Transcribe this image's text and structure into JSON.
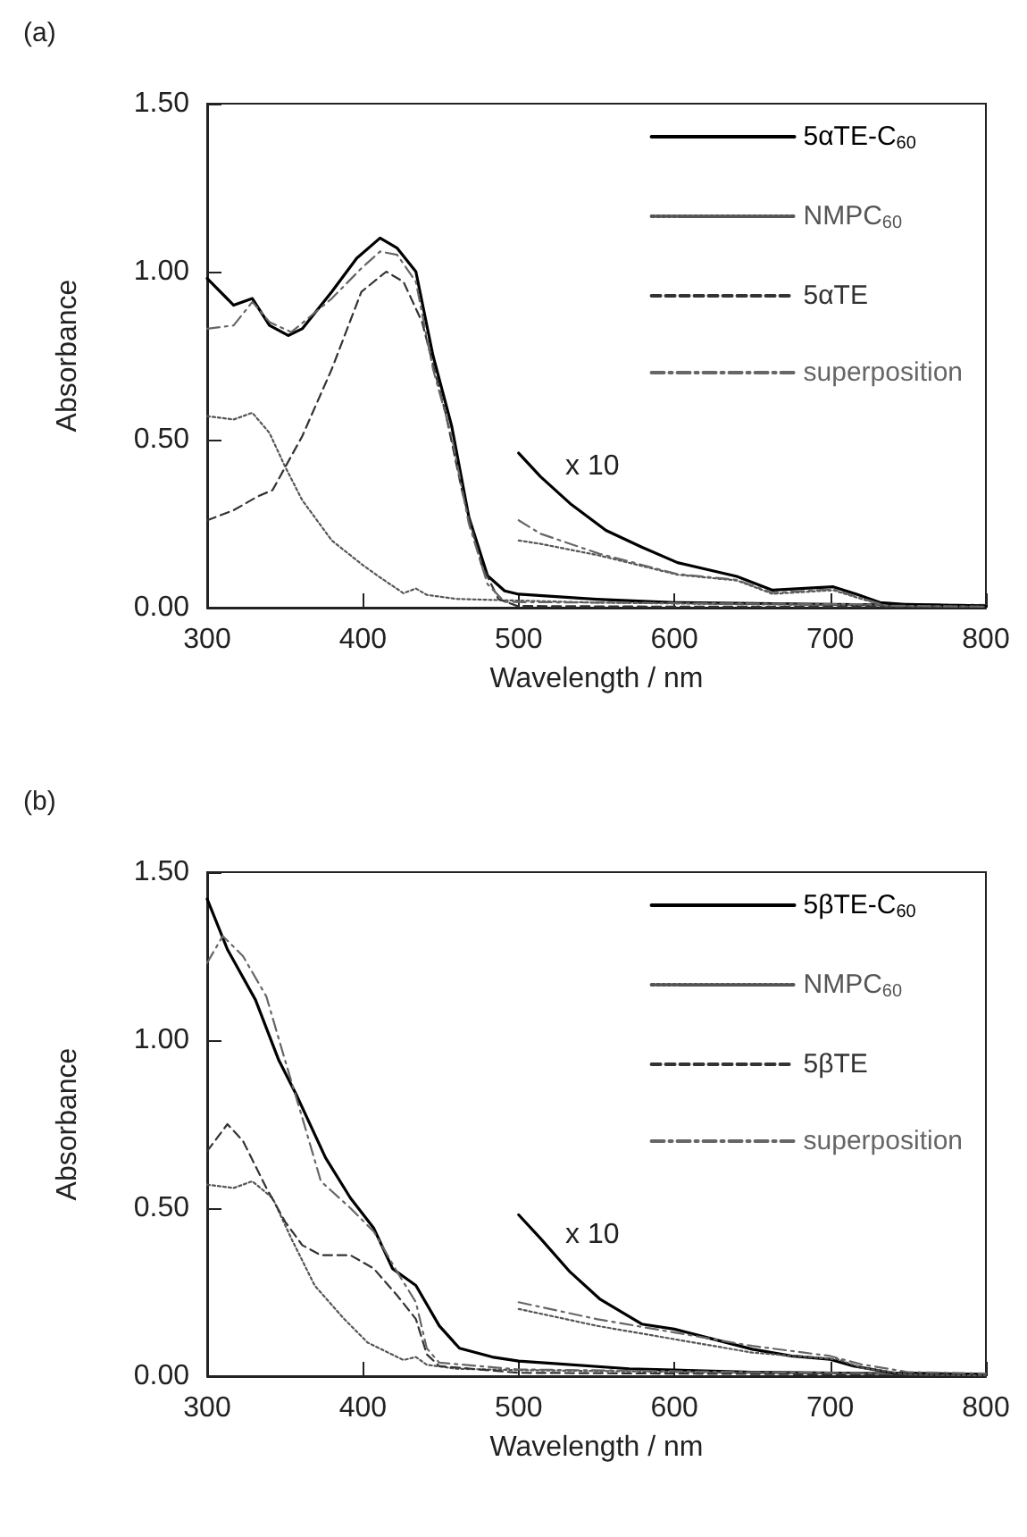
{
  "chart_data": [
    {
      "type": "line",
      "title": "(a)",
      "xlabel": "Wavelength / nm",
      "ylabel": "Absorbance",
      "xlim": [
        300,
        800
      ],
      "xticks": [
        300,
        400,
        500,
        600,
        700,
        800
      ],
      "ylim": [
        0,
        1.5
      ],
      "yticks": [
        {
          "value": 0,
          "label": "0.00"
        },
        {
          "value": 0.5,
          "label": "0.50"
        },
        {
          "value": 1,
          "label": "1.00"
        },
        {
          "value": 1.5,
          "label": "1.50"
        }
      ],
      "grid": false,
      "legend": "top right",
      "marker": "none",
      "annotations": [
        "x 10"
      ],
      "series": [
        {
          "name": "5αTE-C$_{60}$",
          "color": "#000000",
          "line_style": "solid",
          "x": [
            300,
            317,
            329,
            340,
            352,
            361,
            380,
            396,
            411,
            422,
            434,
            445,
            457,
            468,
            480,
            491,
            500,
            550,
            600,
            700,
            800
          ],
          "values": [
            0.98,
            0.9,
            0.92,
            0.84,
            0.81,
            0.83,
            0.94,
            1.04,
            1.1,
            1.07,
            1.0,
            0.75,
            0.54,
            0.27,
            0.095,
            0.05,
            0.04,
            0.025,
            0.015,
            0.01,
            0.005
          ]
        },
        {
          "name": "NMPC$_{60}$",
          "color": "#555555",
          "line_style": "dotted",
          "x": [
            300,
            317,
            329,
            340,
            350,
            361,
            380,
            399,
            411,
            426,
            434,
            441,
            460,
            491,
            550,
            650,
            800
          ],
          "values": [
            0.57,
            0.56,
            0.58,
            0.52,
            0.42,
            0.32,
            0.2,
            0.13,
            0.09,
            0.043,
            0.057,
            0.038,
            0.026,
            0.022,
            0.015,
            0.01,
            0.005
          ]
        },
        {
          "name": "5αTE",
          "color": "#333333",
          "line_style": "dashed",
          "x": [
            300,
            317,
            332,
            342,
            361,
            380,
            399,
            415,
            426,
            438,
            453,
            464,
            476,
            487,
            499,
            600,
            800
          ],
          "values": [
            0.26,
            0.29,
            0.33,
            0.35,
            0.51,
            0.71,
            0.94,
            1.0,
            0.97,
            0.85,
            0.58,
            0.34,
            0.13,
            0.026,
            0.005,
            0.003,
            0.002
          ]
        },
        {
          "name": "superposition",
          "color": "#666666",
          "line_style": "dashdot",
          "x": [
            300,
            317,
            329,
            340,
            354,
            380,
            399,
            411,
            422,
            434,
            445,
            457,
            468,
            480,
            491,
            550,
            650,
            800
          ],
          "values": [
            0.83,
            0.84,
            0.91,
            0.85,
            0.82,
            0.92,
            1.01,
            1.06,
            1.05,
            0.97,
            0.71,
            0.51,
            0.25,
            0.07,
            0.017,
            0.015,
            0.012,
            0.008
          ]
        },
        {
          "color": "#000000",
          "line_style": "solid",
          "x": [
            500,
            514,
            533,
            556,
            579,
            602,
            640,
            663,
            702,
            717,
            732,
            748,
            800
          ],
          "values": [
            0.46,
            0.39,
            0.31,
            0.23,
            0.18,
            0.134,
            0.093,
            0.052,
            0.062,
            0.04,
            0.015,
            0.01,
            0.005
          ]
        },
        {
          "color": "#555555",
          "line_style": "dotted",
          "x": [
            500,
            514,
            552,
            602,
            640,
            663,
            702,
            720,
            736,
            800
          ],
          "values": [
            0.2,
            0.19,
            0.155,
            0.098,
            0.081,
            0.041,
            0.052,
            0.026,
            0.005,
            0.003
          ]
        },
        {
          "color": "#666666",
          "line_style": "dashdot",
          "x": [
            500,
            514,
            552,
            602,
            640,
            663,
            702,
            720,
            736,
            800
          ],
          "values": [
            0.26,
            0.22,
            0.16,
            0.1,
            0.083,
            0.044,
            0.055,
            0.028,
            0.006,
            0.003
          ]
        }
      ]
    },
    {
      "type": "line",
      "title": "(b)",
      "xlabel": "Wavelength / nm",
      "ylabel": "Absorbance",
      "xlim": [
        300,
        800
      ],
      "xticks": [
        300,
        400,
        500,
        600,
        700,
        800
      ],
      "ylim": [
        0,
        1.5
      ],
      "yticks": [
        {
          "value": 0,
          "label": "0.00"
        },
        {
          "value": 0.5,
          "label": "0.50"
        },
        {
          "value": 1,
          "label": "1.00"
        },
        {
          "value": 1.5,
          "label": "1.50"
        }
      ],
      "grid": false,
      "legend": "top right",
      "marker": "none",
      "annotations": [
        "x 10"
      ],
      "series": [
        {
          "name": "5βTE-C$_{60}$",
          "color": "#000000",
          "line_style": "solid",
          "x": [
            300,
            313,
            331,
            346,
            357,
            376,
            392,
            407,
            419,
            434,
            449,
            462,
            483,
            500,
            571,
            650,
            800
          ],
          "values": [
            1.42,
            1.27,
            1.12,
            0.94,
            0.84,
            0.65,
            0.53,
            0.44,
            0.32,
            0.27,
            0.15,
            0.083,
            0.057,
            0.045,
            0.022,
            0.012,
            0.005
          ]
        },
        {
          "name": "NMPC$_{60}$",
          "color": "#555555",
          "line_style": "dotted",
          "x": [
            300,
            317,
            329,
            342,
            354,
            369,
            388,
            403,
            426,
            434,
            441,
            460,
            500,
            650,
            800
          ],
          "values": [
            0.57,
            0.56,
            0.58,
            0.53,
            0.41,
            0.27,
            0.17,
            0.1,
            0.048,
            0.057,
            0.034,
            0.022,
            0.018,
            0.01,
            0.005
          ]
        },
        {
          "name": "5βTE",
          "color": "#333333",
          "line_style": "dashed",
          "x": [
            300,
            313,
            323,
            338,
            350,
            361,
            373,
            392,
            407,
            422,
            434,
            441,
            449,
            500,
            800
          ],
          "values": [
            0.67,
            0.75,
            0.7,
            0.56,
            0.46,
            0.39,
            0.36,
            0.36,
            0.32,
            0.24,
            0.17,
            0.065,
            0.03,
            0.01,
            0.003
          ]
        },
        {
          "name": "superposition",
          "color": "#666666",
          "line_style": "dashdot",
          "x": [
            300,
            310,
            323,
            338,
            350,
            361,
            373,
            392,
            407,
            422,
            434,
            441,
            449,
            500,
            650,
            800
          ],
          "values": [
            1.23,
            1.31,
            1.25,
            1.13,
            0.94,
            0.77,
            0.58,
            0.5,
            0.43,
            0.31,
            0.22,
            0.083,
            0.04,
            0.02,
            0.012,
            0.006
          ]
        },
        {
          "color": "#000000",
          "line_style": "solid",
          "x": [
            500,
            514,
            533,
            552,
            579,
            600,
            625,
            650,
            675,
            700,
            715,
            740,
            800
          ],
          "values": [
            0.48,
            0.41,
            0.31,
            0.23,
            0.155,
            0.14,
            0.11,
            0.08,
            0.06,
            0.05,
            0.03,
            0.01,
            0.005
          ]
        },
        {
          "color": "#555555",
          "line_style": "dotted",
          "x": [
            500,
            550,
            600,
            650,
            705,
            720,
            750,
            800
          ],
          "values": [
            0.2,
            0.15,
            0.11,
            0.07,
            0.05,
            0.025,
            0.005,
            0.002
          ]
        },
        {
          "color": "#666666",
          "line_style": "dashdot",
          "x": [
            500,
            550,
            600,
            650,
            700,
            720,
            750,
            800
          ],
          "values": [
            0.22,
            0.17,
            0.13,
            0.09,
            0.06,
            0.035,
            0.012,
            0.008
          ]
        }
      ]
    }
  ]
}
